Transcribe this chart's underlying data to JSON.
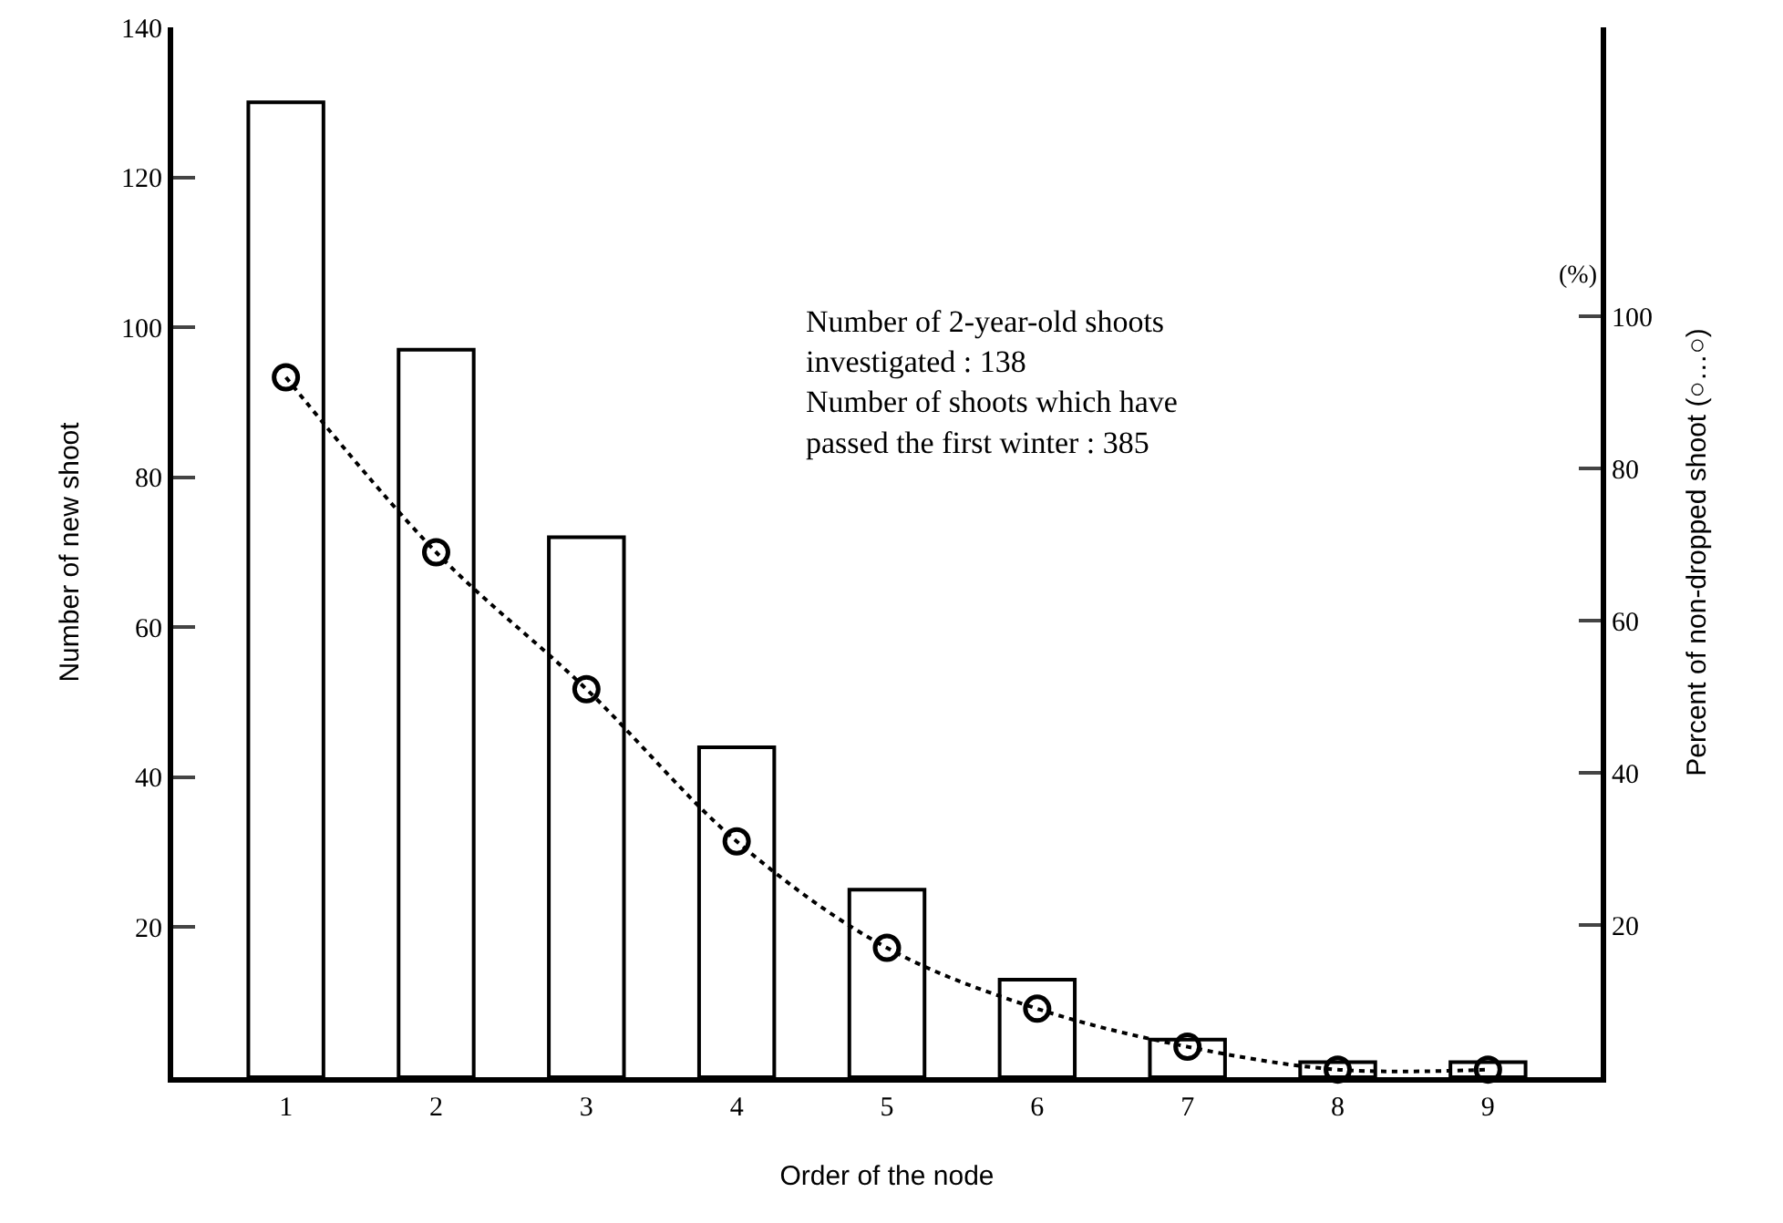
{
  "chart_data": {
    "type": "bar",
    "xlabel": "Order of the node",
    "ylabel": "Number of new shoot",
    "y2label": "Percent of non-dropped shoot (○…○)",
    "categories": [
      "1",
      "2",
      "3",
      "4",
      "5",
      "6",
      "7",
      "8",
      "9"
    ],
    "series": [
      {
        "color": "#ffffff",
        "values": [
          130,
          97,
          72,
          44,
          25,
          13,
          5,
          2,
          2
        ]
      },
      {
        "type": "line",
        "axis": "y2",
        "color": "#000000",
        "marker": "circle",
        "line_style": "dotted",
        "values": [
          92,
          69,
          51,
          31,
          17,
          9,
          4,
          1,
          1
        ]
      }
    ],
    "ylim": [
      0,
      140
    ],
    "yticks": [
      20,
      40,
      60,
      80,
      100,
      120,
      140
    ],
    "y2lim": [
      0,
      138
    ],
    "y2ticks": [
      20,
      40,
      60,
      80,
      100
    ],
    "annotations": [
      "(%)",
      "Number of 2-year-old shoots\ninvestigated : 138\nNumber of shoots which have\npassed the first winter : 385"
    ]
  }
}
